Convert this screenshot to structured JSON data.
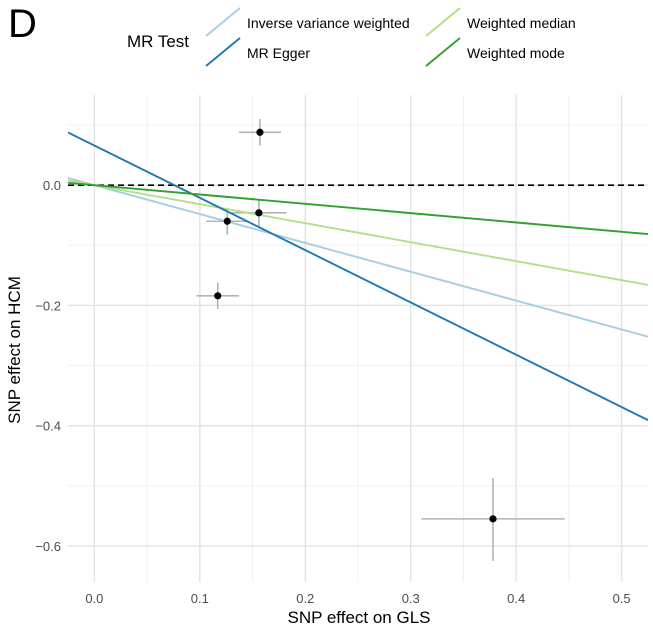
{
  "panel_label": "D",
  "chart_data": {
    "type": "scatter",
    "title": "",
    "xlabel": "SNP effect on GLS",
    "ylabel": "SNP effect on HCM",
    "xlim": [
      -0.025,
      0.525
    ],
    "ylim": [
      -0.66,
      0.15
    ],
    "x_ticks": [
      0.0,
      0.1,
      0.2,
      0.3,
      0.4,
      0.5
    ],
    "x_tick_labels": [
      "0.0",
      "0.1",
      "0.2",
      "0.3",
      "0.4",
      "0.5"
    ],
    "y_ticks": [
      0.0,
      -0.2,
      -0.4,
      -0.6
    ],
    "y_tick_labels": [
      "0.0",
      "−0.2",
      "−0.4",
      "−0.6"
    ],
    "grid": true,
    "reference_line": {
      "y": 0,
      "style": "dashed"
    },
    "legend": {
      "title": "MR Test",
      "placement": "top",
      "entries": [
        "Inverse variance weighted",
        "MR Egger",
        "Weighted median",
        "Weighted mode"
      ]
    },
    "points": [
      {
        "x": 0.157,
        "y": 0.088,
        "x_lo": 0.137,
        "x_hi": 0.177,
        "y_lo": 0.066,
        "y_hi": 0.11
      },
      {
        "x": 0.126,
        "y": -0.06,
        "x_lo": 0.106,
        "x_hi": 0.146,
        "y_lo": -0.082,
        "y_hi": -0.038
      },
      {
        "x": 0.156,
        "y": -0.046,
        "x_lo": 0.13,
        "x_hi": 0.182,
        "y_lo": -0.068,
        "y_hi": -0.024
      },
      {
        "x": 0.117,
        "y": -0.184,
        "x_lo": 0.097,
        "x_hi": 0.137,
        "y_lo": -0.206,
        "y_hi": -0.162
      },
      {
        "x": 0.378,
        "y": -0.555,
        "x_lo": 0.31,
        "x_hi": 0.446,
        "y_lo": -0.625,
        "y_hi": -0.487
      }
    ],
    "series": [
      {
        "name": "Inverse variance weighted",
        "color": "#a6cee3",
        "intercept": 0.0,
        "slope": -0.48
      },
      {
        "name": "MR Egger",
        "color": "#1f78b4",
        "intercept": 0.066,
        "slope": -0.87
      },
      {
        "name": "Weighted median",
        "color": "#b2df8a",
        "intercept": 0.0,
        "slope": -0.316
      },
      {
        "name": "Weighted mode",
        "color": "#33a02c",
        "intercept": 0.0,
        "slope": -0.155
      }
    ]
  }
}
